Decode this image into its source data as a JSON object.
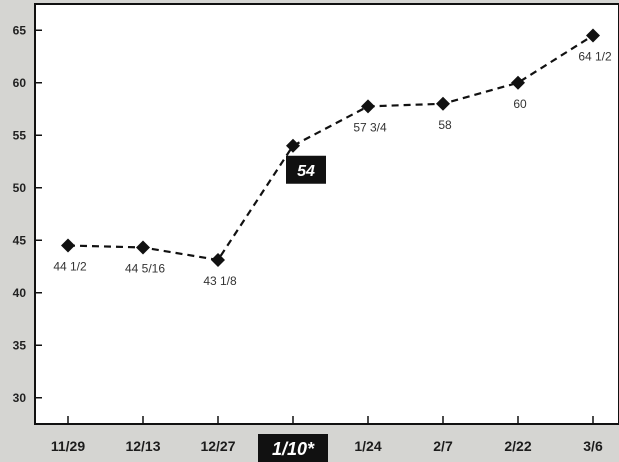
{
  "chart_data": {
    "type": "line",
    "title": "",
    "xlabel": "",
    "ylabel": "",
    "categories": [
      "11/29",
      "12/13",
      "12/27",
      "1/10*",
      "1/24",
      "2/7",
      "2/22",
      "3/6"
    ],
    "values": [
      44.5,
      44.3125,
      43.125,
      54,
      57.75,
      58,
      60,
      64.5
    ],
    "value_labels": [
      "44 1/2",
      "44 5/16",
      "43 1/8",
      "54",
      "57 3/4",
      "58",
      "60",
      "64 1/2"
    ],
    "highlight_index": 3,
    "yticks": [
      30,
      35,
      40,
      45,
      50,
      55,
      60,
      65
    ],
    "ylim": [
      27.5,
      67.5
    ],
    "grid": false,
    "line_style": "dashed",
    "marker": "diamond",
    "colors": {
      "line": "#111111",
      "marker": "#111111",
      "plot_background": "#ffffff",
      "page_background": "#d5d5d2",
      "highlight_box": "#111111",
      "highlight_text": "#ffffff"
    }
  }
}
